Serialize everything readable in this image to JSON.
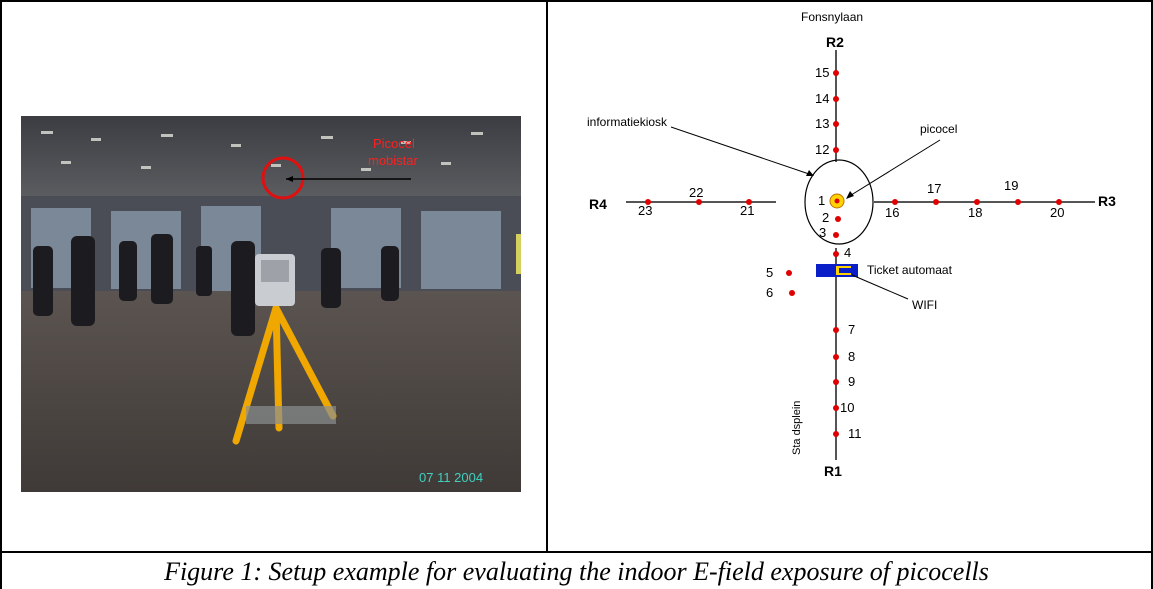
{
  "photo": {
    "annotation_line1": "Picocel",
    "annotation_line2": "mobistar",
    "date_stamp": "07 11 2004"
  },
  "diagram": {
    "street_name": "Fonsnylaan",
    "routes": {
      "r1": "R1",
      "r2": "R2",
      "r3": "R3",
      "r4": "R4"
    },
    "labels": {
      "kiosk": "informatiekiosk",
      "picocel": "picocel",
      "ticket": "Ticket automaat",
      "wifi": "WIFI",
      "vertical_text": "Sta dsplein"
    },
    "points": [
      "1",
      "2",
      "3",
      "4",
      "5",
      "6",
      "7",
      "8",
      "9",
      "10",
      "11",
      "12",
      "13",
      "14",
      "15",
      "16",
      "17",
      "18",
      "19",
      "20",
      "21",
      "22",
      "23"
    ],
    "colors": {
      "point": "#e00000",
      "line": "#555555",
      "ticket_box": "#0a1fc8",
      "ticket_inner": "#ffd200"
    }
  },
  "caption": "Figure 1: Setup example for evaluating the indoor E-field exposure of picocells"
}
